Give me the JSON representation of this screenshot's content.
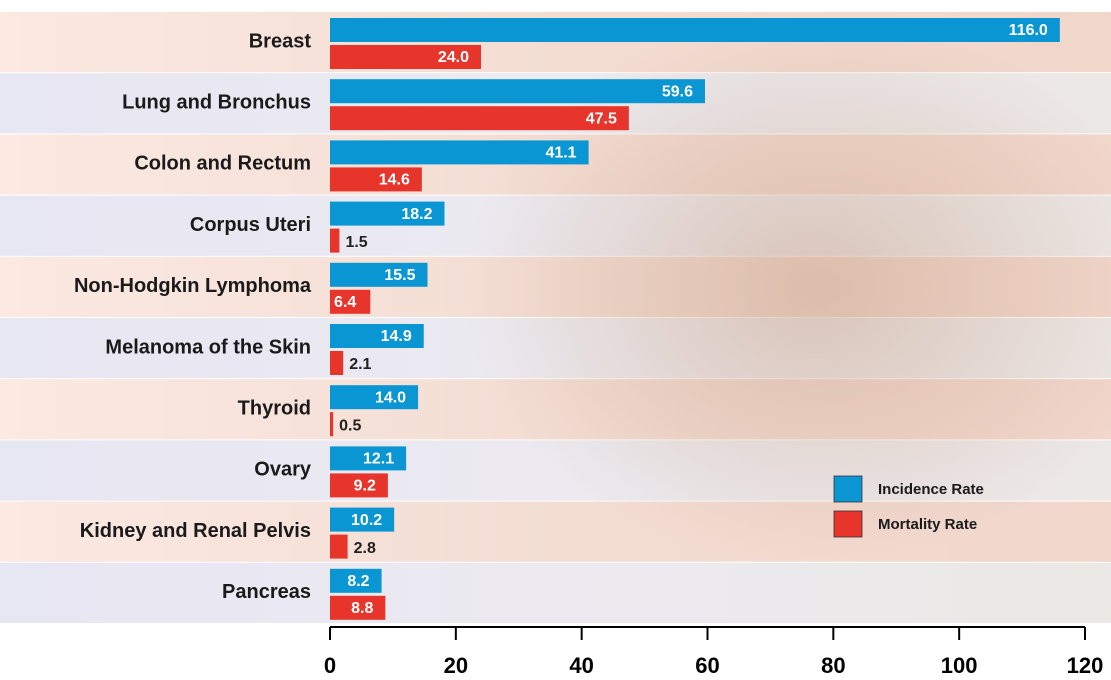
{
  "chart_data": {
    "type": "bar",
    "orientation": "horizontal",
    "categories": [
      "Breast",
      "Lung and Bronchus",
      "Colon and Rectum",
      "Corpus Uteri",
      "Non-Hodgkin Lymphoma",
      "Melanoma of the Skin",
      "Thyroid",
      "Ovary",
      "Kidney and Renal Pelvis",
      "Pancreas"
    ],
    "series": [
      {
        "name": "Incidence Rate",
        "color": "#0a96d2",
        "values": [
          116.0,
          59.6,
          41.1,
          18.2,
          15.5,
          14.9,
          14.0,
          12.1,
          10.2,
          8.2
        ],
        "value_labels": [
          "116.0",
          "59.6",
          "41.1",
          "18.2",
          "15.5",
          "14.9",
          "14.0",
          "12.1",
          "10.2",
          "8.2"
        ]
      },
      {
        "name": "Mortality Rate",
        "color": "#e8352c",
        "values": [
          24.0,
          47.5,
          14.6,
          1.5,
          6.4,
          2.1,
          0.5,
          9.2,
          2.8,
          8.8
        ],
        "value_labels": [
          "24.0",
          "47.5",
          "14.6",
          "1.5",
          "6.4",
          "2.1",
          "0.5",
          "9.2",
          "2.8",
          "8.8"
        ]
      }
    ],
    "xlim": [
      0,
      120
    ],
    "xticks": [
      0,
      20,
      40,
      60,
      80,
      100,
      120
    ]
  }
}
